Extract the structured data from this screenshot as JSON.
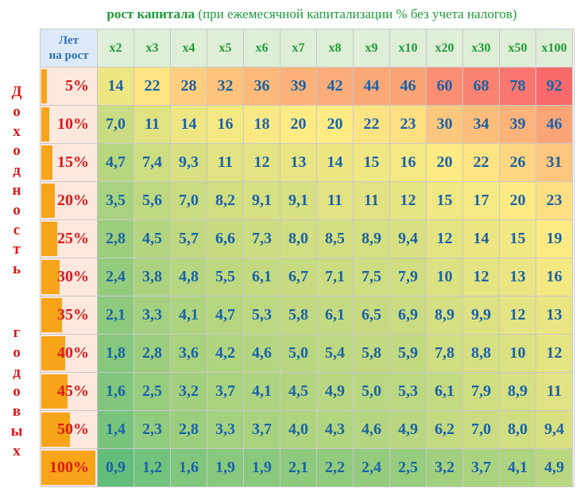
{
  "title": {
    "bold": "рост капитала",
    "normal": " (при ежемесячной капитализации % без учета налогов)"
  },
  "side_label": {
    "word1": [
      "Д",
      "о",
      "х",
      "о",
      "д",
      "н",
      "о",
      "с",
      "т",
      "ь"
    ],
    "word2": [
      "г",
      "о",
      "д",
      "о",
      "в",
      "ы",
      "х"
    ]
  },
  "colors": {
    "header_bg": "#dfeed7",
    "header_text": "#1f9b3a",
    "corner_bg": "#dce9f6",
    "rate_bar": "#f8a418",
    "rate_text": "#e0161b",
    "value_text": "#1a63a8",
    "scale_low": "#63be7b",
    "scale_mid": "#ffeb84",
    "scale_high": "#f8696b"
  },
  "chart_data": {
    "type": "heatmap",
    "corner_label": [
      "Лет",
      "на рост"
    ],
    "columns": [
      "x2",
      "x3",
      "x4",
      "x5",
      "x6",
      "x7",
      "x8",
      "x9",
      "x10",
      "x20",
      "x30",
      "x50",
      "x100"
    ],
    "rows": [
      {
        "rate": "5%",
        "rate_value": 5,
        "values": [
          "14",
          "22",
          "28",
          "32",
          "36",
          "39",
          "42",
          "44",
          "46",
          "60",
          "68",
          "78",
          "92"
        ]
      },
      {
        "rate": "10%",
        "rate_value": 10,
        "values": [
          "7,0",
          "11",
          "14",
          "16",
          "18",
          "20",
          "20",
          "22",
          "23",
          "30",
          "34",
          "39",
          "46"
        ]
      },
      {
        "rate": "15%",
        "rate_value": 15,
        "values": [
          "4,7",
          "7,4",
          "9,3",
          "11",
          "12",
          "13",
          "14",
          "15",
          "16",
          "20",
          "22",
          "26",
          "31"
        ]
      },
      {
        "rate": "20%",
        "rate_value": 20,
        "values": [
          "3,5",
          "5,6",
          "7,0",
          "8,2",
          "9,1",
          "9,1",
          "11",
          "11",
          "12",
          "15",
          "17",
          "20",
          "23"
        ]
      },
      {
        "rate": "25%",
        "rate_value": 25,
        "values": [
          "2,8",
          "4,5",
          "5,7",
          "6,6",
          "7,3",
          "8,0",
          "8,5",
          "8,9",
          "9,4",
          "12",
          "14",
          "15",
          "19"
        ]
      },
      {
        "rate": "30%",
        "rate_value": 30,
        "values": [
          "2,4",
          "3,8",
          "4,8",
          "5,5",
          "6,1",
          "6,7",
          "7,1",
          "7,5",
          "7,9",
          "10",
          "12",
          "13",
          "16"
        ]
      },
      {
        "rate": "35%",
        "rate_value": 35,
        "values": [
          "2,1",
          "3,3",
          "4,1",
          "4,7",
          "5,3",
          "5,8",
          "6,1",
          "6,5",
          "6,9",
          "8,9",
          "9,9",
          "12",
          "13"
        ]
      },
      {
        "rate": "40%",
        "rate_value": 40,
        "values": [
          "1,8",
          "2,8",
          "3,6",
          "4,2",
          "4,6",
          "5,0",
          "5,4",
          "5,8",
          "5,9",
          "7,8",
          "8,8",
          "10",
          "12"
        ]
      },
      {
        "rate": "45%",
        "rate_value": 45,
        "values": [
          "1,6",
          "2,5",
          "3,2",
          "3,7",
          "4,1",
          "4,5",
          "4,9",
          "5,0",
          "5,3",
          "6,1",
          "7,9",
          "8,9",
          "11"
        ]
      },
      {
        "rate": "50%",
        "rate_value": 50,
        "values": [
          "1,4",
          "2,3",
          "2,8",
          "3,3",
          "3,7",
          "4,0",
          "4,3",
          "4,6",
          "4,9",
          "6,2",
          "7,0",
          "8,0",
          "9,4"
        ]
      },
      {
        "rate": "100%",
        "rate_value": 100,
        "values": [
          "0,9",
          "1,2",
          "1,6",
          "1,9",
          "1,9",
          "2,1",
          "2,2",
          "2,4",
          "2,5",
          "3,2",
          "3,7",
          "4,1",
          "4,9"
        ]
      }
    ]
  }
}
